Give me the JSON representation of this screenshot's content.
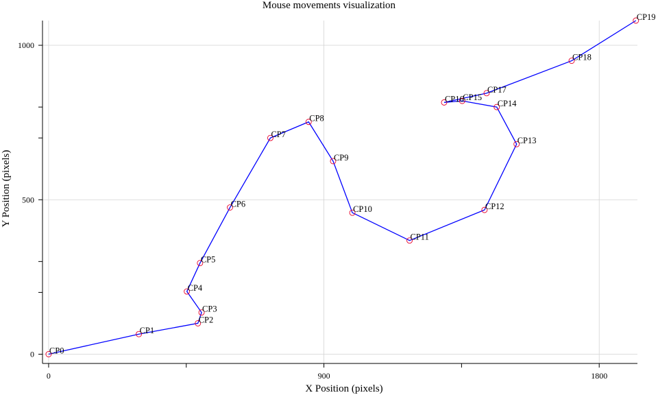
{
  "chart_data": {
    "type": "line",
    "title": "Mouse movements visualization",
    "xlabel": "X Position (pixels)",
    "ylabel": "Y Position (pixels)",
    "xlim": [
      -20,
      1925
    ],
    "ylim": [
      -30,
      1080
    ],
    "grid": true,
    "x_ticks": [
      {
        "value": 0,
        "label": "0"
      },
      {
        "value": 450,
        "label": ""
      },
      {
        "value": 900,
        "label": "900"
      },
      {
        "value": 1350,
        "label": ""
      },
      {
        "value": 1800,
        "label": "1800"
      }
    ],
    "y_ticks": [
      {
        "value": 0,
        "label": "0"
      },
      {
        "value": 200,
        "label": ""
      },
      {
        "value": 300,
        "label": ""
      },
      {
        "value": 500,
        "label": "500"
      },
      {
        "value": 700,
        "label": ""
      },
      {
        "value": 800,
        "label": ""
      },
      {
        "value": 1000,
        "label": "1000"
      }
    ],
    "series": [
      {
        "name": "",
        "color": "#0000ff",
        "marker_color": "#e8002a",
        "points": [
          {
            "label": "CP0",
            "x": 0,
            "y": 0
          },
          {
            "label": "CP1",
            "x": 295,
            "y": 65
          },
          {
            "label": "CP2",
            "x": 488,
            "y": 100
          },
          {
            "label": "CP3",
            "x": 500,
            "y": 135
          },
          {
            "label": "CP4",
            "x": 452,
            "y": 203
          },
          {
            "label": "CP5",
            "x": 495,
            "y": 295
          },
          {
            "label": "CP6",
            "x": 593,
            "y": 475
          },
          {
            "label": "CP7",
            "x": 725,
            "y": 700
          },
          {
            "label": "CP8",
            "x": 850,
            "y": 752
          },
          {
            "label": "CP9",
            "x": 930,
            "y": 625
          },
          {
            "label": "CP10",
            "x": 993,
            "y": 458
          },
          {
            "label": "CP11",
            "x": 1180,
            "y": 368
          },
          {
            "label": "CP12",
            "x": 1425,
            "y": 467
          },
          {
            "label": "CP13",
            "x": 1530,
            "y": 680
          },
          {
            "label": "CP14",
            "x": 1465,
            "y": 800
          },
          {
            "label": "CP15",
            "x": 1352,
            "y": 820
          },
          {
            "label": "CP16",
            "x": 1293,
            "y": 815
          },
          {
            "label": "CP17",
            "x": 1432,
            "y": 845
          },
          {
            "label": "CP18",
            "x": 1710,
            "y": 950
          },
          {
            "label": "CP19",
            "x": 1920,
            "y": 1080
          }
        ]
      }
    ]
  }
}
